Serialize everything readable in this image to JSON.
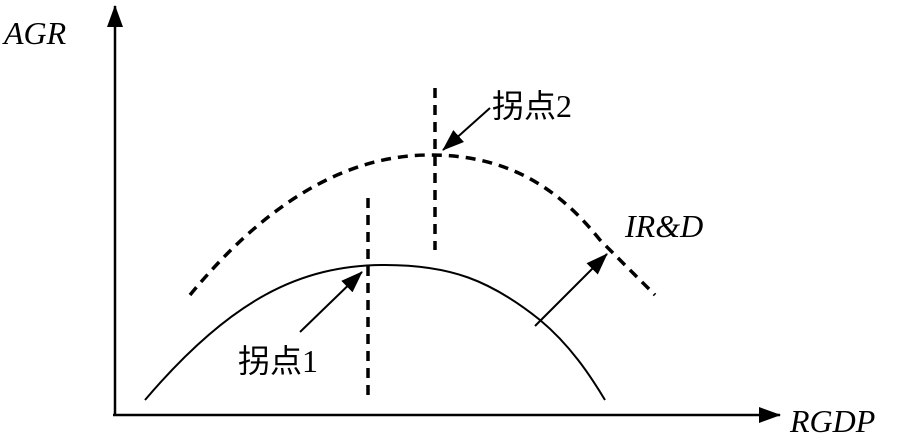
{
  "axes": {
    "y_label": "AGR",
    "x_label": "RGDP"
  },
  "curves": [
    {
      "name": "lower-curve",
      "style": "solid"
    },
    {
      "name": "upper-curve",
      "style": "dashed",
      "label": "IR&D"
    }
  ],
  "annotations": {
    "inflection1": "拐点1",
    "inflection2": "拐点2"
  },
  "colors": {
    "stroke": "#000000",
    "background": "#ffffff"
  }
}
